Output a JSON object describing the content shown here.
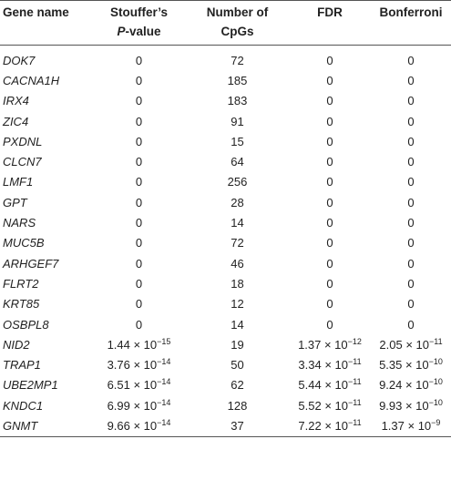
{
  "table": {
    "headers": {
      "gene": "Gene name",
      "stouffer_line1": "Stouffer’s",
      "stouffer_line2_italic": "P",
      "stouffer_line2_rest": "-value",
      "cpgs_line1": "Number of",
      "cpgs_line2": "CpGs",
      "fdr": "FDR",
      "bonferroni": "Bonferroni"
    },
    "rows": [
      {
        "gene": "DOK7",
        "p": "0",
        "cpgs": "72",
        "fdr": "0",
        "bonf": "0"
      },
      {
        "gene": "CACNA1H",
        "p": "0",
        "cpgs": "185",
        "fdr": "0",
        "bonf": "0"
      },
      {
        "gene": "IRX4",
        "p": "0",
        "cpgs": "183",
        "fdr": "0",
        "bonf": "0"
      },
      {
        "gene": "ZIC4",
        "p": "0",
        "cpgs": "91",
        "fdr": "0",
        "bonf": "0"
      },
      {
        "gene": "PXDNL",
        "p": "0",
        "cpgs": "15",
        "fdr": "0",
        "bonf": "0"
      },
      {
        "gene": "CLCN7",
        "p": "0",
        "cpgs": "64",
        "fdr": "0",
        "bonf": "0"
      },
      {
        "gene": "LMF1",
        "p": "0",
        "cpgs": "256",
        "fdr": "0",
        "bonf": "0"
      },
      {
        "gene": "GPT",
        "p": "0",
        "cpgs": "28",
        "fdr": "0",
        "bonf": "0"
      },
      {
        "gene": "NARS",
        "p": "0",
        "cpgs": "14",
        "fdr": "0",
        "bonf": "0"
      },
      {
        "gene": "MUC5B",
        "p": "0",
        "cpgs": "72",
        "fdr": "0",
        "bonf": "0"
      },
      {
        "gene": "ARHGEF7",
        "p": "0",
        "cpgs": "46",
        "fdr": "0",
        "bonf": "0"
      },
      {
        "gene": "FLRT2",
        "p": "0",
        "cpgs": "18",
        "fdr": "0",
        "bonf": "0"
      },
      {
        "gene": "KRT85",
        "p": "0",
        "cpgs": "12",
        "fdr": "0",
        "bonf": "0"
      },
      {
        "gene": "OSBPL8",
        "p": "0",
        "cpgs": "14",
        "fdr": "0",
        "bonf": "0"
      },
      {
        "gene": "NID2",
        "p_mant": "1.44 × 10",
        "p_exp": "−15",
        "cpgs": "19",
        "fdr_mant": "1.37 × 10",
        "fdr_exp": "−12",
        "bonf_mant": "2.05 × 10",
        "bonf_exp": "−11"
      },
      {
        "gene": "TRAP1",
        "p_mant": "3.76 × 10",
        "p_exp": "−14",
        "cpgs": "50",
        "fdr_mant": "3.34 × 10",
        "fdr_exp": "−11",
        "bonf_mant": "5.35 × 10",
        "bonf_exp": "−10"
      },
      {
        "gene": "UBE2MP1",
        "p_mant": "6.51 × 10",
        "p_exp": "−14",
        "cpgs": "62",
        "fdr_mant": "5.44 × 10",
        "fdr_exp": "−11",
        "bonf_mant": "9.24 × 10",
        "bonf_exp": "−10"
      },
      {
        "gene": "KNDC1",
        "p_mant": "6.99 × 10",
        "p_exp": "−14",
        "cpgs": "128",
        "fdr_mant": "5.52 × 10",
        "fdr_exp": "−11",
        "bonf_mant": "9.93 × 10",
        "bonf_exp": "−10"
      },
      {
        "gene": "GNMT",
        "p_mant": "9.66 × 10",
        "p_exp": "−14",
        "cpgs": "37",
        "fdr_mant": "7.22 × 10",
        "fdr_exp": "−11",
        "bonf_mant": "1.37 × 10",
        "bonf_exp": "−9"
      }
    ]
  }
}
